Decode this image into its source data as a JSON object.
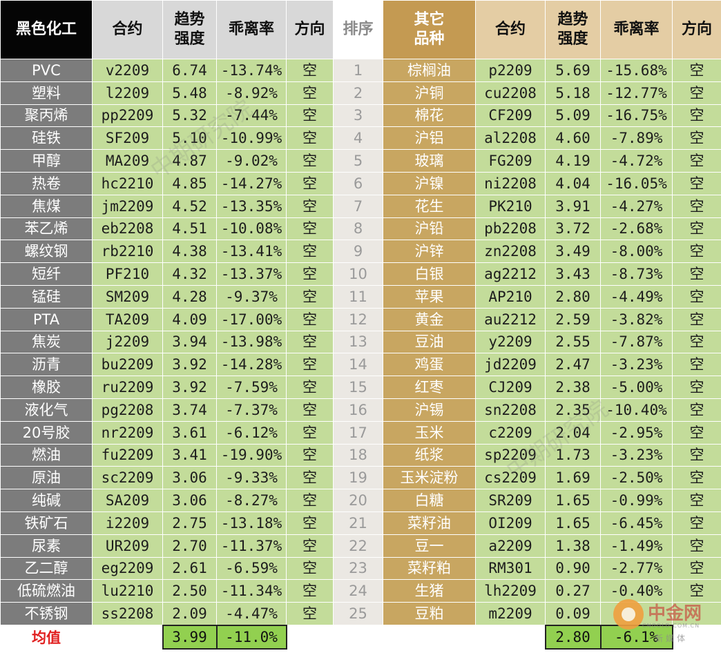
{
  "headers": {
    "left_category": "黑色化工",
    "contract": "合约",
    "strength_line1": "趋势",
    "strength_line2": "强度",
    "deviation": "乖离率",
    "direction": "方向",
    "rank": "排序",
    "right_category_line1": "其它",
    "right_category_line2": "品种"
  },
  "rows": [
    {
      "rank": "1",
      "l_name": "PVC",
      "l_contract": "v2209",
      "l_strength": "6.74",
      "l_dev": "-13.74%",
      "l_dir": "空",
      "r_name": "棕榈油",
      "r_contract": "p2209",
      "r_strength": "5.69",
      "r_dev": "-15.68%",
      "r_dir": "空"
    },
    {
      "rank": "2",
      "l_name": "塑料",
      "l_contract": "l2209",
      "l_strength": "5.48",
      "l_dev": "-8.92%",
      "l_dir": "空",
      "r_name": "沪铜",
      "r_contract": "cu2208",
      "r_strength": "5.18",
      "r_dev": "-12.77%",
      "r_dir": "空"
    },
    {
      "rank": "3",
      "l_name": "聚丙烯",
      "l_contract": "pp2209",
      "l_strength": "5.32",
      "l_dev": "-7.44%",
      "l_dir": "空",
      "r_name": "棉花",
      "r_contract": "CF209",
      "r_strength": "5.09",
      "r_dev": "-16.75%",
      "r_dir": "空"
    },
    {
      "rank": "4",
      "l_name": "硅铁",
      "l_contract": "SF209",
      "l_strength": "5.10",
      "l_dev": "-10.99%",
      "l_dir": "空",
      "r_name": "沪铝",
      "r_contract": "al2208",
      "r_strength": "4.60",
      "r_dev": "-7.89%",
      "r_dir": "空"
    },
    {
      "rank": "5",
      "l_name": "甲醇",
      "l_contract": "MA209",
      "l_strength": "4.87",
      "l_dev": "-9.02%",
      "l_dir": "空",
      "r_name": "玻璃",
      "r_contract": "FG209",
      "r_strength": "4.19",
      "r_dev": "-4.72%",
      "r_dir": "空"
    },
    {
      "rank": "6",
      "l_name": "热卷",
      "l_contract": "hc2210",
      "l_strength": "4.85",
      "l_dev": "-14.27%",
      "l_dir": "空",
      "r_name": "沪镍",
      "r_contract": "ni2208",
      "r_strength": "4.04",
      "r_dev": "-16.05%",
      "r_dir": "空"
    },
    {
      "rank": "7",
      "l_name": "焦煤",
      "l_contract": "jm2209",
      "l_strength": "4.52",
      "l_dev": "-13.35%",
      "l_dir": "空",
      "r_name": "花生",
      "r_contract": "PK210",
      "r_strength": "3.91",
      "r_dev": "-4.27%",
      "r_dir": "空"
    },
    {
      "rank": "8",
      "l_name": "苯乙烯",
      "l_contract": "eb2208",
      "l_strength": "4.51",
      "l_dev": "-10.08%",
      "l_dir": "空",
      "r_name": "沪铅",
      "r_contract": "pb2208",
      "r_strength": "3.72",
      "r_dev": "-2.68%",
      "r_dir": "空"
    },
    {
      "rank": "9",
      "l_name": "螺纹钢",
      "l_contract": "rb2210",
      "l_strength": "4.38",
      "l_dev": "-13.41%",
      "l_dir": "空",
      "r_name": "沪锌",
      "r_contract": "zn2208",
      "r_strength": "3.49",
      "r_dev": "-8.00%",
      "r_dir": "空"
    },
    {
      "rank": "10",
      "l_name": "短纤",
      "l_contract": "PF210",
      "l_strength": "4.32",
      "l_dev": "-13.37%",
      "l_dir": "空",
      "r_name": "白银",
      "r_contract": "ag2212",
      "r_strength": "3.43",
      "r_dev": "-8.73%",
      "r_dir": "空"
    },
    {
      "rank": "11",
      "l_name": "锰硅",
      "l_contract": "SM209",
      "l_strength": "4.28",
      "l_dev": "-9.37%",
      "l_dir": "空",
      "r_name": "苹果",
      "r_contract": "AP210",
      "r_strength": "2.80",
      "r_dev": "-4.49%",
      "r_dir": "空"
    },
    {
      "rank": "12",
      "l_name": "PTA",
      "l_contract": "TA209",
      "l_strength": "4.09",
      "l_dev": "-17.00%",
      "l_dir": "空",
      "r_name": "黄金",
      "r_contract": "au2212",
      "r_strength": "2.59",
      "r_dev": "-3.82%",
      "r_dir": "空"
    },
    {
      "rank": "13",
      "l_name": "焦炭",
      "l_contract": "j2209",
      "l_strength": "3.94",
      "l_dev": "-13.98%",
      "l_dir": "空",
      "r_name": "豆油",
      "r_contract": "y2209",
      "r_strength": "2.55",
      "r_dev": "-7.87%",
      "r_dir": "空"
    },
    {
      "rank": "14",
      "l_name": "沥青",
      "l_contract": "bu2209",
      "l_strength": "3.92",
      "l_dev": "-14.28%",
      "l_dir": "空",
      "r_name": "鸡蛋",
      "r_contract": "jd2209",
      "r_strength": "2.47",
      "r_dev": "-3.23%",
      "r_dir": "空"
    },
    {
      "rank": "15",
      "l_name": "橡胶",
      "l_contract": "ru2209",
      "l_strength": "3.92",
      "l_dev": "-7.59%",
      "l_dir": "空",
      "r_name": "红枣",
      "r_contract": "CJ209",
      "r_strength": "2.38",
      "r_dev": "-5.00%",
      "r_dir": "空"
    },
    {
      "rank": "16",
      "l_name": "液化气",
      "l_contract": "pg2208",
      "l_strength": "3.74",
      "l_dev": "-7.37%",
      "l_dir": "空",
      "r_name": "沪锡",
      "r_contract": "sn2208",
      "r_strength": "2.35",
      "r_dev": "-10.40%",
      "r_dir": "空"
    },
    {
      "rank": "17",
      "l_name": "20号胶",
      "l_contract": "nr2209",
      "l_strength": "3.61",
      "l_dev": "-6.12%",
      "l_dir": "空",
      "r_name": "玉米",
      "r_contract": "c2209",
      "r_strength": "2.04",
      "r_dev": "-2.95%",
      "r_dir": "空"
    },
    {
      "rank": "18",
      "l_name": "燃油",
      "l_contract": "fu2209",
      "l_strength": "3.41",
      "l_dev": "-19.90%",
      "l_dir": "空",
      "r_name": "纸浆",
      "r_contract": "sp2209",
      "r_strength": "1.73",
      "r_dev": "-3.23%",
      "r_dir": "空"
    },
    {
      "rank": "19",
      "l_name": "原油",
      "l_contract": "sc2209",
      "l_strength": "3.06",
      "l_dev": "-9.33%",
      "l_dir": "空",
      "r_name": "玉米淀粉",
      "r_contract": "cs2209",
      "r_strength": "1.69",
      "r_dev": "-2.50%",
      "r_dir": "空"
    },
    {
      "rank": "20",
      "l_name": "纯碱",
      "l_contract": "SA209",
      "l_strength": "3.06",
      "l_dev": "-8.27%",
      "l_dir": "空",
      "r_name": "白糖",
      "r_contract": "SR209",
      "r_strength": "1.65",
      "r_dev": "-0.99%",
      "r_dir": "空"
    },
    {
      "rank": "21",
      "l_name": "铁矿石",
      "l_contract": "i2209",
      "l_strength": "2.75",
      "l_dev": "-13.18%",
      "l_dir": "空",
      "r_name": "菜籽油",
      "r_contract": "OI209",
      "r_strength": "1.65",
      "r_dev": "-6.45%",
      "r_dir": "空"
    },
    {
      "rank": "22",
      "l_name": "尿素",
      "l_contract": "UR209",
      "l_strength": "2.70",
      "l_dev": "-11.37%",
      "l_dir": "空",
      "r_name": "豆一",
      "r_contract": "a2209",
      "r_strength": "1.38",
      "r_dev": "-1.49%",
      "r_dir": "空"
    },
    {
      "rank": "23",
      "l_name": "乙二醇",
      "l_contract": "eg2209",
      "l_strength": "2.61",
      "l_dev": "-6.59%",
      "l_dir": "空",
      "r_name": "菜籽粕",
      "r_contract": "RM301",
      "r_strength": "0.90",
      "r_dev": "-2.77%",
      "r_dir": "空"
    },
    {
      "rank": "24",
      "l_name": "低硫燃油",
      "l_contract": "lu2210",
      "l_strength": "2.50",
      "l_dev": "-11.34%",
      "l_dir": "空",
      "r_name": "生猪",
      "r_contract": "lh2209",
      "r_strength": "0.27",
      "r_dev": "-0.40%",
      "r_dir": "空"
    },
    {
      "rank": "25",
      "l_name": "不锈钢",
      "l_contract": "ss2208",
      "l_strength": "2.09",
      "l_dev": "-4.47%",
      "l_dir": "空",
      "r_name": "豆粕",
      "r_contract": "m2209",
      "r_strength": "0.09",
      "r_dev": "",
      "r_dir": ""
    }
  ],
  "footer": {
    "label": "均值",
    "left_avg_strength": "3.99",
    "left_avg_dev": "-11.0%",
    "right_avg_strength": "2.80",
    "right_avg_dev": "-6.1%"
  },
  "watermarks": [
    "中期研究院",
    "中期研究院"
  ],
  "logo": {
    "brand": "中金网",
    "domain": "CNGOLD.COM.CN",
    "subtitle": "新媒体"
  },
  "colors": {
    "header_black": "#050505",
    "header_gold": "#c49a52",
    "name_grey": "#7c7c7c",
    "value_green": "#c3dc9a",
    "right_name_gold": "#c8a661",
    "avg_green": "#92d050",
    "avg_label_red": "#e11f1f"
  }
}
